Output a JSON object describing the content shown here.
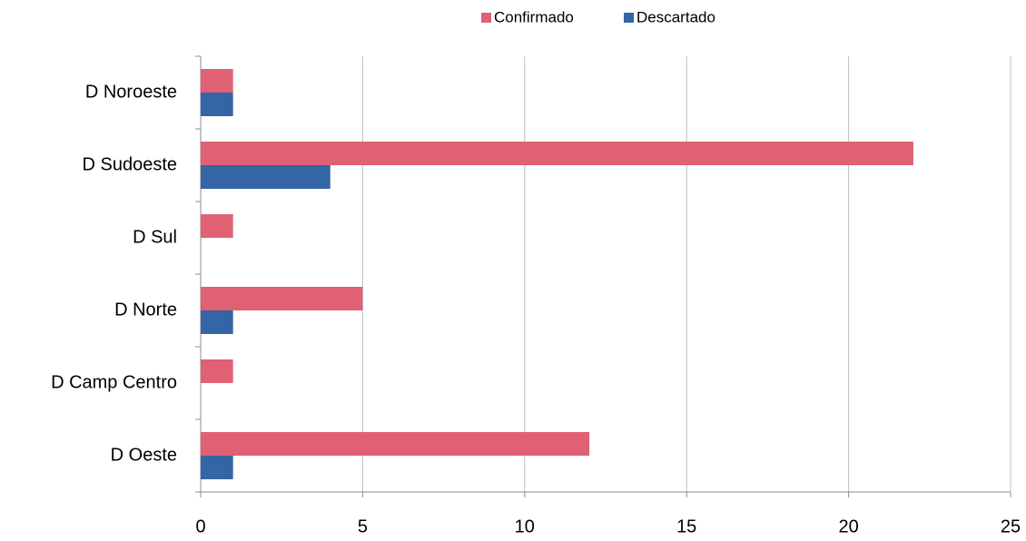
{
  "chart_data": {
    "type": "bar",
    "orientation": "horizontal",
    "categories": [
      "D Noroeste",
      "D Sudoeste",
      "D Sul",
      "D Norte",
      "D Camp Centro",
      "D Oeste"
    ],
    "series": [
      {
        "name": "Confirmado",
        "color": "#e06074",
        "values": [
          1,
          22,
          1,
          5,
          1,
          12
        ]
      },
      {
        "name": "Descartado",
        "color": "#3465a4",
        "values": [
          1,
          4,
          0,
          1,
          0,
          1
        ]
      }
    ],
    "xlim": [
      0,
      25
    ],
    "xticks": [
      0,
      5,
      10,
      15,
      20,
      25
    ],
    "grid": true,
    "legend": "top"
  }
}
